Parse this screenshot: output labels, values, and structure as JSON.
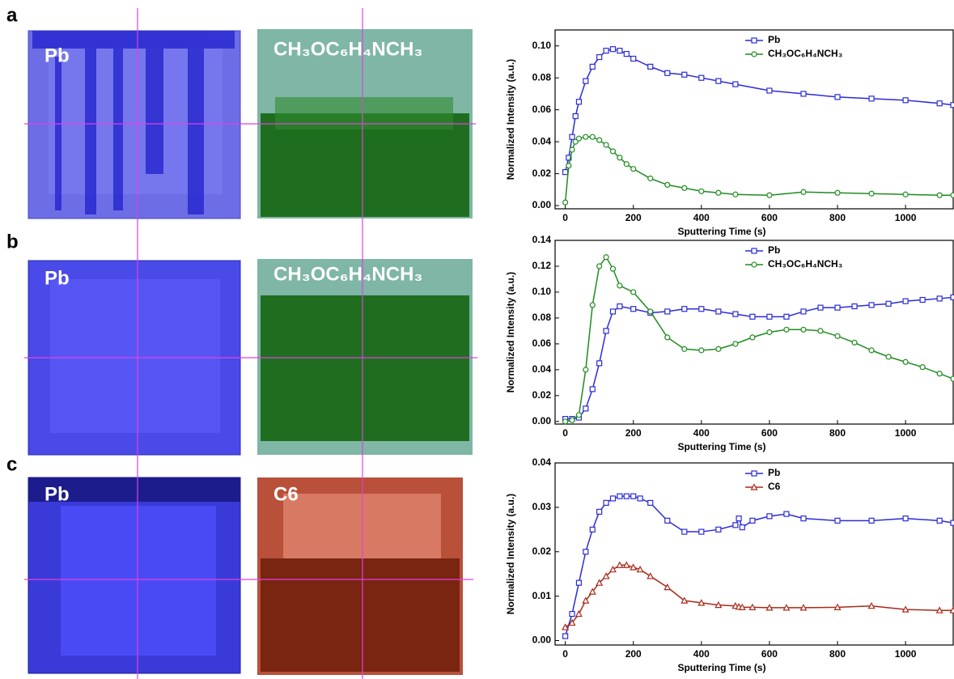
{
  "panels": [
    "a",
    "b",
    "c"
  ],
  "renders": [
    [
      "Pb",
      "CH₃OC₆H₄NCH₃"
    ],
    [
      "Pb",
      "CH₃OC₆H₄NCH₃"
    ],
    [
      "Pb",
      "C6"
    ]
  ],
  "chart_data": [
    {
      "type": "line",
      "x_label": "Sputtering Time (s)",
      "y_label": "Normalized Intensity (a.u.)",
      "xlim": [
        -30,
        1140
      ],
      "ylim": [
        -0.002,
        0.11
      ],
      "xticks": [
        0,
        200,
        400,
        600,
        800,
        1000
      ],
      "yticks": [
        {
          "value": 0,
          "label": "0.00"
        },
        0.02,
        0.04,
        0.06,
        0.08,
        {
          "value": 0.1,
          "label": "0.10"
        }
      ],
      "grid": false,
      "legend": "top",
      "x": [
        0,
        10,
        20,
        30,
        40,
        60,
        80,
        100,
        120,
        140,
        160,
        180,
        200,
        250,
        300,
        350,
        400,
        450,
        500,
        600,
        700,
        800,
        900,
        1000,
        1100,
        1140
      ],
      "series": [
        {
          "name": "Pb",
          "color": "#2b2bd9",
          "marker": "square",
          "values": [
            0.021,
            0.03,
            0.043,
            0.056,
            0.065,
            0.078,
            0.087,
            0.093,
            0.097,
            0.098,
            0.097,
            0.095,
            0.092,
            0.087,
            0.083,
            0.082,
            0.08,
            0.078,
            0.076,
            0.072,
            0.07,
            0.068,
            0.067,
            0.066,
            0.064,
            0.063
          ]
        },
        {
          "name": "CH₃OC₆H₄NCH₃",
          "color": "#1e8c1e",
          "marker": "circle",
          "values": [
            0.002,
            0.025,
            0.035,
            0.04,
            0.042,
            0.043,
            0.043,
            0.041,
            0.038,
            0.034,
            0.03,
            0.026,
            0.023,
            0.017,
            0.013,
            0.011,
            0.009,
            0.008,
            0.007,
            0.0065,
            0.0085,
            0.008,
            0.0075,
            0.007,
            0.0065,
            0.0065
          ]
        }
      ]
    },
    {
      "type": "line",
      "x_label": "Sputtering Time (s)",
      "y_label": "Normalized Intensity (a.u.)",
      "xlim": [
        -30,
        1140
      ],
      "ylim": [
        -0.002,
        0.14
      ],
      "xticks": [
        0,
        200,
        400,
        600,
        800,
        1000
      ],
      "yticks": [
        {
          "value": 0,
          "label": "0.00"
        },
        0.02,
        0.04,
        0.06,
        0.08,
        {
          "value": 0.1,
          "label": "0.10"
        },
        0.12,
        0.14
      ],
      "grid": false,
      "legend": "top",
      "x": [
        0,
        20,
        40,
        60,
        80,
        100,
        120,
        140,
        160,
        200,
        250,
        300,
        350,
        400,
        450,
        500,
        550,
        600,
        650,
        700,
        750,
        800,
        850,
        900,
        950,
        1000,
        1050,
        1100,
        1140
      ],
      "series": [
        {
          "name": "Pb",
          "color": "#2b2bd9",
          "marker": "square",
          "values": [
            0.002,
            0.002,
            0.003,
            0.01,
            0.025,
            0.045,
            0.07,
            0.085,
            0.089,
            0.087,
            0.084,
            0.085,
            0.087,
            0.087,
            0.085,
            0.083,
            0.081,
            0.081,
            0.081,
            0.085,
            0.088,
            0.088,
            0.089,
            0.09,
            0.091,
            0.093,
            0.094,
            0.095,
            0.096
          ]
        },
        {
          "name": "CH₃OC₆H₄NCH₃",
          "color": "#1e8c1e",
          "marker": "circle",
          "values": [
            0,
            0.001,
            0.005,
            0.04,
            0.09,
            0.12,
            0.127,
            0.118,
            0.105,
            0.1,
            0.085,
            0.065,
            0.056,
            0.055,
            0.056,
            0.06,
            0.065,
            0.069,
            0.071,
            0.071,
            0.07,
            0.066,
            0.061,
            0.055,
            0.05,
            0.046,
            0.042,
            0.037,
            0.033
          ]
        }
      ]
    },
    {
      "type": "line",
      "x_label": "Sputtering Time (s)",
      "y_label": "Normalized Intensity (a.u.)",
      "xlim": [
        -30,
        1140
      ],
      "ylim": [
        -0.001,
        0.04
      ],
      "xticks": [
        0,
        200,
        400,
        600,
        800,
        1000
      ],
      "yticks": [
        {
          "value": 0,
          "label": "0.00"
        },
        0.01,
        0.02,
        0.03,
        0.04
      ],
      "grid": false,
      "legend": "top",
      "x": [
        0,
        20,
        40,
        60,
        80,
        100,
        120,
        140,
        160,
        180,
        200,
        220,
        250,
        300,
        350,
        400,
        450,
        500,
        510,
        520,
        550,
        600,
        650,
        700,
        800,
        900,
        1000,
        1100,
        1140
      ],
      "series": [
        {
          "name": "Pb",
          "color": "#2b2bd9",
          "marker": "square",
          "values": [
            0.001,
            0.006,
            0.013,
            0.02,
            0.025,
            0.029,
            0.031,
            0.032,
            0.0325,
            0.0325,
            0.0325,
            0.032,
            0.031,
            0.027,
            0.0245,
            0.0245,
            0.025,
            0.026,
            0.0275,
            0.0255,
            0.027,
            0.028,
            0.0285,
            0.0275,
            0.027,
            0.027,
            0.0275,
            0.027,
            0.0265
          ]
        },
        {
          "name": "C6",
          "color": "#a82a1a",
          "marker": "triangle",
          "values": [
            0.003,
            0.004,
            0.006,
            0.009,
            0.011,
            0.013,
            0.0145,
            0.016,
            0.017,
            0.017,
            0.0165,
            0.016,
            0.0145,
            0.012,
            0.009,
            0.0085,
            0.008,
            0.0078,
            0.0076,
            0.0075,
            0.0075,
            0.0074,
            0.0074,
            0.0074,
            0.0075,
            0.0078,
            0.007,
            0.0068,
            0.0068
          ]
        }
      ]
    }
  ]
}
